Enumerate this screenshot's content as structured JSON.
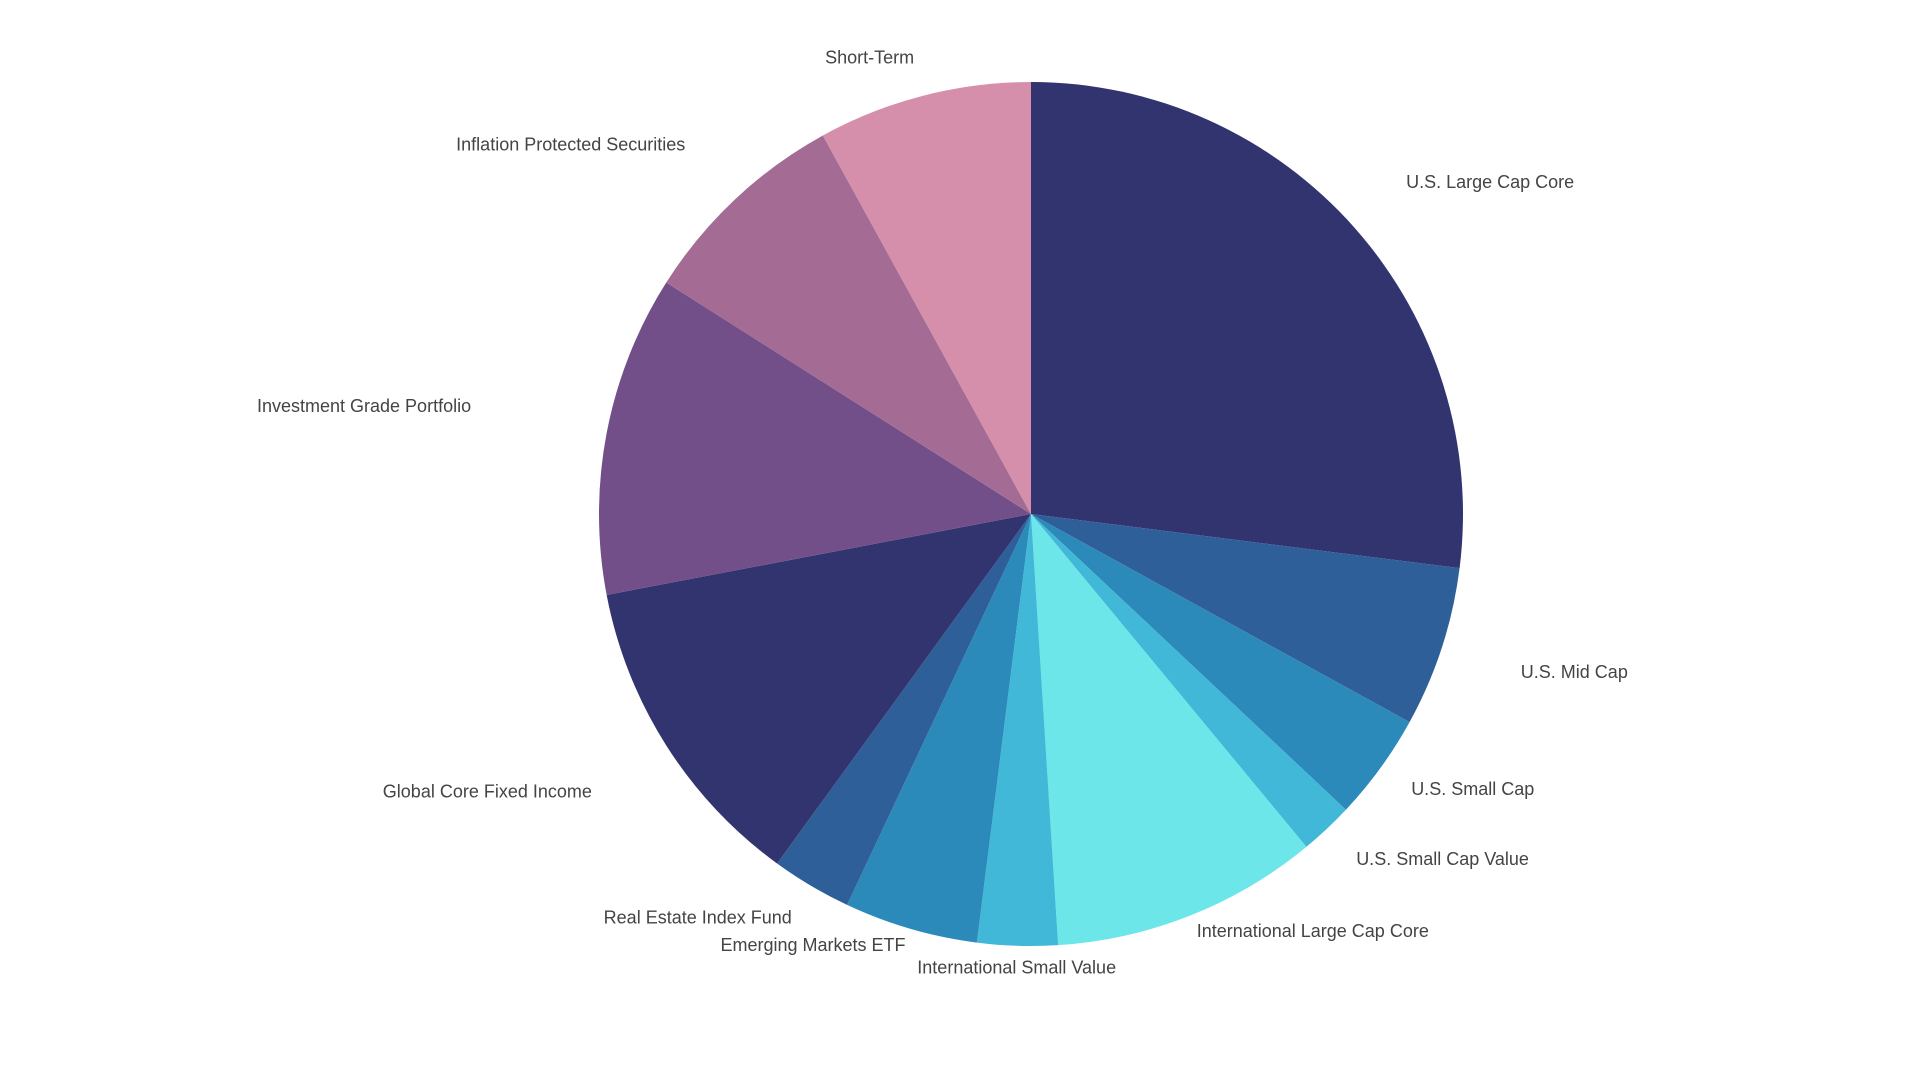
{
  "chart_data": {
    "type": "pie",
    "title": "",
    "slices": [
      {
        "label": "U.S. Large Cap Core",
        "value": 27.0,
        "color": "#31346e"
      },
      {
        "label": "U.S. Mid Cap",
        "value": 6.0,
        "color": "#2e5f99"
      },
      {
        "label": "U.S. Small Cap",
        "value": 4.0,
        "color": "#2c8aba"
      },
      {
        "label": "U.S. Small Cap Value",
        "value": 2.0,
        "color": "#41b8d8"
      },
      {
        "label": "International Large Cap Core",
        "value": 10.0,
        "color": "#6ce6e9"
      },
      {
        "label": "International Small Value",
        "value": 3.0,
        "color": "#41b8d8"
      },
      {
        "label": "Emerging Markets ETF",
        "value": 5.0,
        "color": "#2c8aba"
      },
      {
        "label": "Real Estate Index Fund",
        "value": 3.0,
        "color": "#2e5f99"
      },
      {
        "label": "Global Core Fixed Income",
        "value": 12.0,
        "color": "#31346e"
      },
      {
        "label": "Investment Grade Portfolio",
        "value": 12.0,
        "color": "#724f88"
      },
      {
        "label": "Inflation Protected Securities",
        "value": 8.0,
        "color": "#a46b95"
      },
      {
        "label": "Short-Term",
        "value": 8.0,
        "color": "#d58faa"
      }
    ],
    "start_angle": "12 o'clock",
    "direction": "clockwise",
    "legend": "none",
    "labels": "outside"
  }
}
